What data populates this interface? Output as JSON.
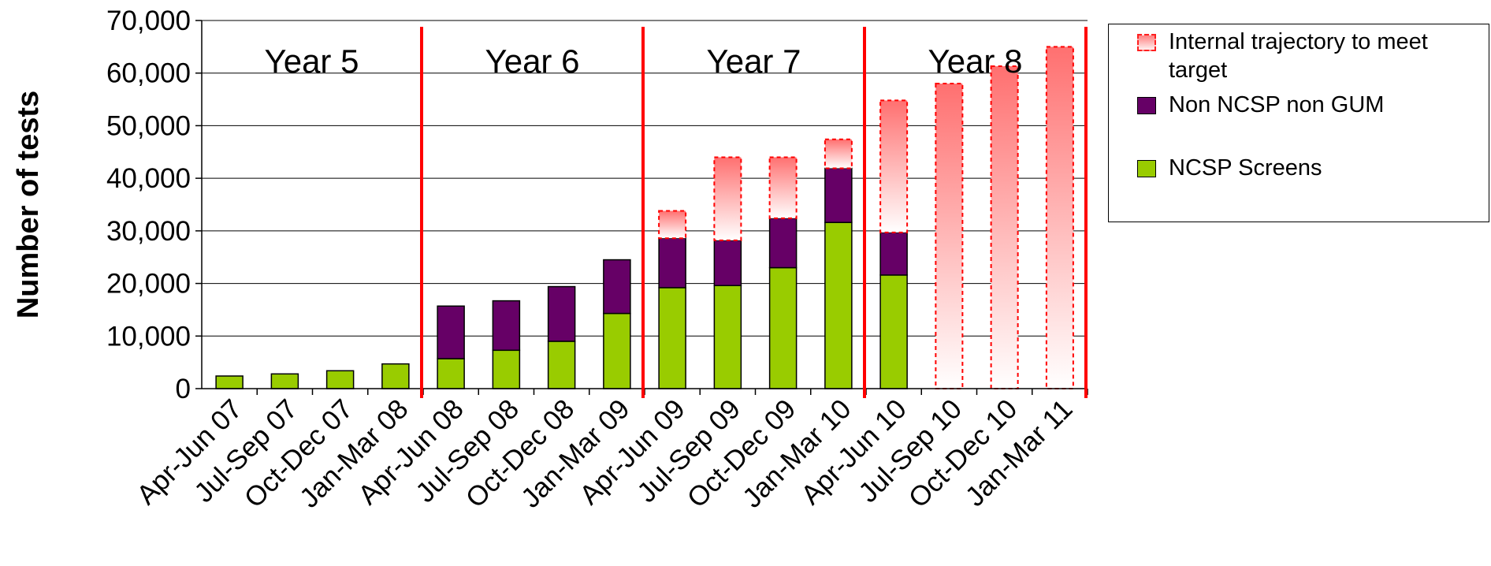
{
  "chart_data": {
    "type": "bar",
    "stacked": true,
    "title": "",
    "xlabel": "",
    "ylabel": "Number of tests",
    "ylim": [
      0,
      70000
    ],
    "yticks": [
      0,
      10000,
      20000,
      30000,
      40000,
      50000,
      60000,
      70000
    ],
    "ytick_labels": [
      "0",
      "10,000",
      "20,000",
      "30,000",
      "40,000",
      "50,000",
      "60,000",
      "70,000"
    ],
    "grid": true,
    "legend_position": "right",
    "categories": [
      "Apr-Jun 07",
      "Jul-Sep 07",
      "Oct-Dec 07",
      "Jan-Mar 08",
      "Apr-Jun 08",
      "Jul-Sep 08",
      "Oct-Dec 08",
      "Jan-Mar 09",
      "Apr-Jun 09",
      "Jul-Sep 09",
      "Oct-Dec 09",
      "Jan-Mar 10",
      "Apr-Jun 10",
      "Jul-Sep 10",
      "Oct-Dec 10",
      "Jan-Mar 11"
    ],
    "series": [
      {
        "name": "NCSP Screens",
        "color": "#99cc00",
        "values": [
          2400,
          2800,
          3400,
          4700,
          5700,
          7300,
          9000,
          14300,
          19200,
          19600,
          23000,
          31600,
          21600,
          0,
          0,
          0
        ]
      },
      {
        "name": "Non NCSP non GUM",
        "color": "#660066",
        "values": [
          0,
          0,
          0,
          0,
          10000,
          9400,
          10400,
          10200,
          9400,
          8600,
          9400,
          10300,
          8100,
          0,
          0,
          0
        ]
      },
      {
        "name": "Internal trajectory to meet target",
        "color": "#ff6666",
        "values": [
          0,
          0,
          0,
          0,
          0,
          0,
          0,
          0,
          5200,
          15800,
          11600,
          5500,
          25100,
          58000,
          61300,
          65000
        ]
      }
    ],
    "year_dividers_after_index": [
      3,
      7,
      11,
      15
    ],
    "year_labels": [
      "Year 5",
      "Year 6",
      "Year 7",
      "Year 8"
    ],
    "divider_color": "#ff0000"
  }
}
